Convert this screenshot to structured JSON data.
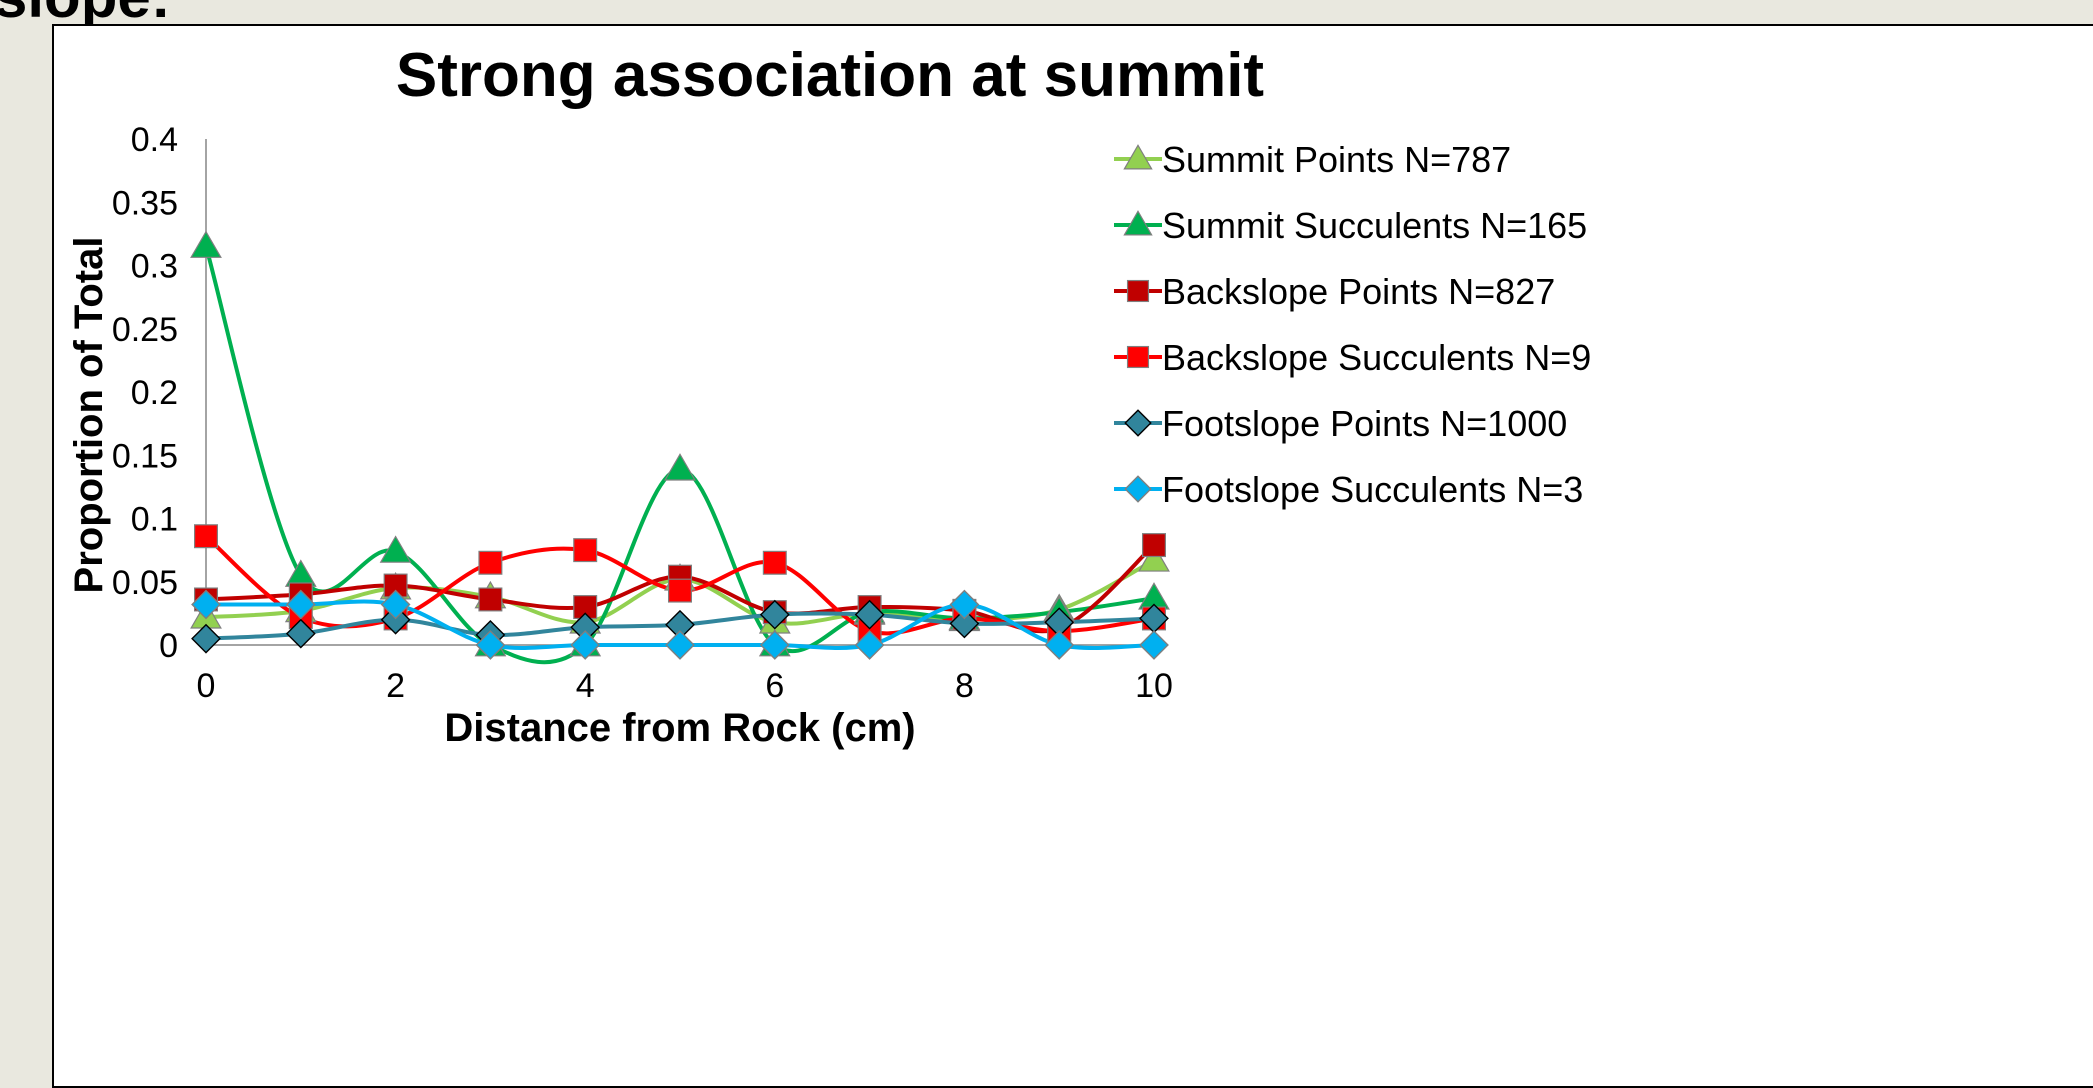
{
  "slide": {
    "heading": "slope:"
  },
  "chart_data": {
    "type": "line",
    "title": "Strong association at summit",
    "xlabel": "Distance from Rock (cm)",
    "ylabel": "Proportion of Total",
    "x": [
      0,
      1,
      2,
      3,
      4,
      5,
      6,
      7,
      8,
      9,
      10
    ],
    "xticks": [
      "0",
      "2",
      "4",
      "6",
      "8",
      "10"
    ],
    "yticks": [
      "0",
      "0.05",
      "0.1",
      "0.15",
      "0.2",
      "0.25",
      "0.3",
      "0.35",
      "0.4"
    ],
    "xlim": [
      0,
      10
    ],
    "ylim": [
      0,
      0.4
    ],
    "smooth": true,
    "grid": false,
    "legend": "right",
    "series": [
      {
        "name": "Summit Points N=787",
        "color": "#92d050",
        "marker": "triangle",
        "values": [
          0.022,
          0.027,
          0.045,
          0.038,
          0.018,
          0.052,
          0.018,
          0.025,
          0.02,
          0.028,
          0.067
        ]
      },
      {
        "name": "Summit Succulents N=165",
        "color": "#00b050",
        "marker": "triangle",
        "values": [
          0.315,
          0.055,
          0.074,
          0.0,
          0.0,
          0.139,
          0.0,
          0.026,
          0.021,
          0.026,
          0.037
        ]
      },
      {
        "name": "Backslope Points N=827",
        "color": "#c00000",
        "marker": "square",
        "values": [
          0.036,
          0.04,
          0.047,
          0.036,
          0.03,
          0.054,
          0.026,
          0.03,
          0.027,
          0.013,
          0.079
        ]
      },
      {
        "name": "Backslope Succulents N=9",
        "color": "#ff0000",
        "marker": "square",
        "values": [
          0.086,
          0.022,
          0.021,
          0.065,
          0.075,
          0.043,
          0.065,
          0.011,
          0.021,
          0.011,
          0.021
        ]
      },
      {
        "name": "Footslope Points N=1000",
        "color": "#31859c",
        "marker": "diamond",
        "values": [
          0.005,
          0.009,
          0.02,
          0.008,
          0.014,
          0.016,
          0.024,
          0.024,
          0.017,
          0.018,
          0.021
        ]
      },
      {
        "name": "Footslope Succulents N=3",
        "color": "#00b0f0",
        "marker": "diamond",
        "values": [
          0.032,
          0.032,
          0.032,
          0.0,
          0.0,
          0.0,
          0.0,
          0.0,
          0.032,
          0.0,
          0.0
        ]
      }
    ]
  }
}
